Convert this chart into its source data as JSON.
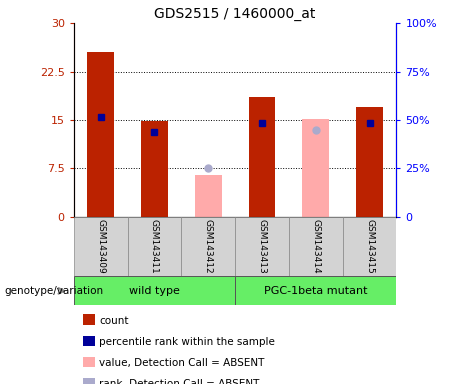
{
  "title": "GDS2515 / 1460000_at",
  "samples": [
    "GSM143409",
    "GSM143411",
    "GSM143412",
    "GSM143413",
    "GSM143414",
    "GSM143415"
  ],
  "count_values": [
    25.5,
    14.8,
    null,
    18.5,
    null,
    17.0
  ],
  "rank_values_left": [
    15.5,
    13.2,
    null,
    14.5,
    null,
    14.5
  ],
  "absent_value_values": [
    null,
    null,
    6.5,
    null,
    15.2,
    null
  ],
  "absent_rank_values_left": [
    null,
    null,
    7.5,
    null,
    13.5,
    null
  ],
  "ylim_left": [
    0,
    30
  ],
  "ylim_right": [
    0,
    100
  ],
  "yticks_left": [
    0,
    7.5,
    15,
    22.5,
    30
  ],
  "yticks_right": [
    0,
    25,
    50,
    75,
    100
  ],
  "ytick_labels_left": [
    "0",
    "7.5",
    "15",
    "22.5",
    "30"
  ],
  "ytick_labels_right": [
    "0",
    "25%",
    "50%",
    "75%",
    "100%"
  ],
  "color_count": "#bb2200",
  "color_rank": "#000099",
  "color_absent_value": "#ffaaaa",
  "color_absent_rank": "#aaaacc",
  "color_group": "#66ee66",
  "bar_width": 0.5,
  "legend_labels": [
    "count",
    "percentile rank within the sample",
    "value, Detection Call = ABSENT",
    "rank, Detection Call = ABSENT"
  ],
  "group_labels": [
    "wild type",
    "PGC-1beta mutant"
  ],
  "xlabel_label": "genotype/variation"
}
